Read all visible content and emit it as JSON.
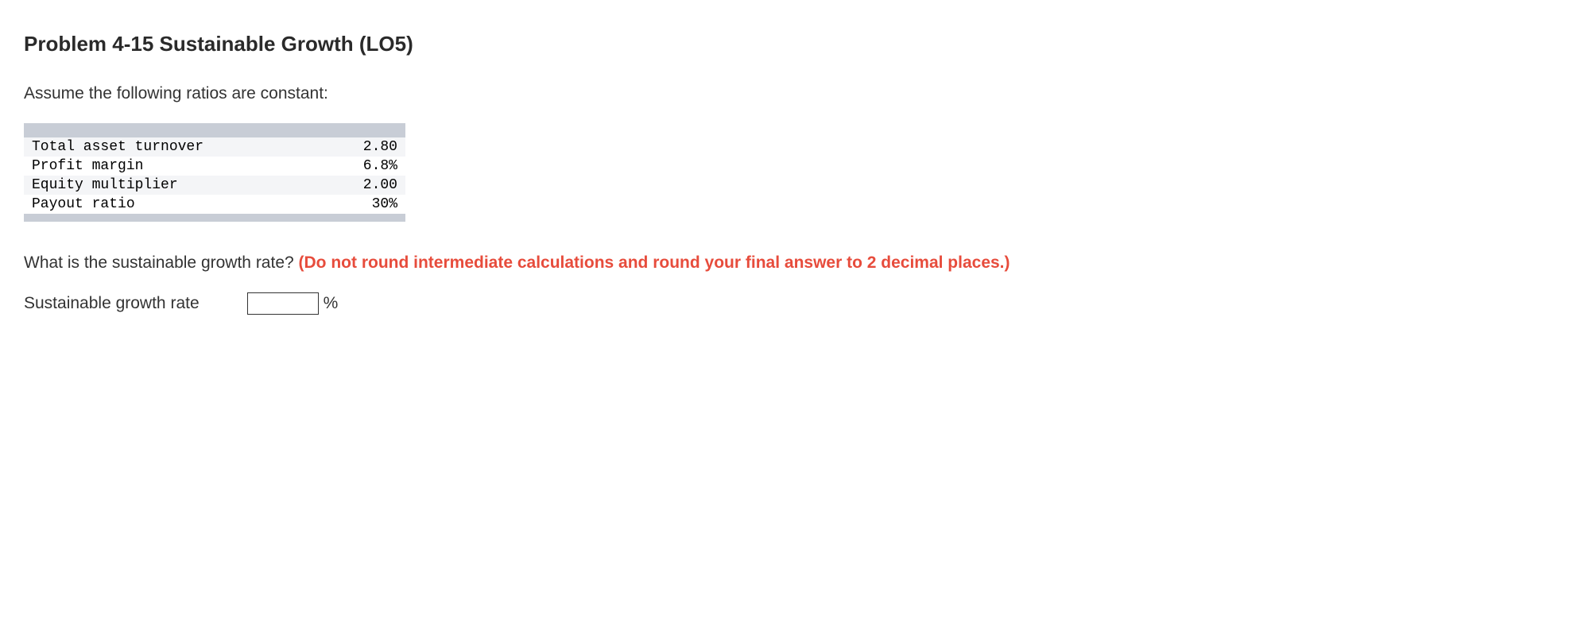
{
  "title": "Problem 4-15 Sustainable Growth (LO5)",
  "intro": "Assume the following ratios are constant:",
  "table": {
    "rows": [
      {
        "label": "Total asset turnover",
        "value": "2.80"
      },
      {
        "label": "Profit margin",
        "value": "6.8%"
      },
      {
        "label": "Equity multiplier",
        "value": "2.00"
      },
      {
        "label": "Payout ratio",
        "value": "30%"
      }
    ],
    "header_bg": "#c8cdd6",
    "alt_row_bg": "#f4f5f7",
    "font_family": "Courier New"
  },
  "question": {
    "text": "What is the sustainable growth rate? ",
    "instruction": "(Do not round intermediate calculations and round your final answer to 2 decimal places.)",
    "instruction_color": "#e74c3c"
  },
  "answer": {
    "label": "Sustainable growth rate",
    "value": "",
    "unit": "%"
  }
}
